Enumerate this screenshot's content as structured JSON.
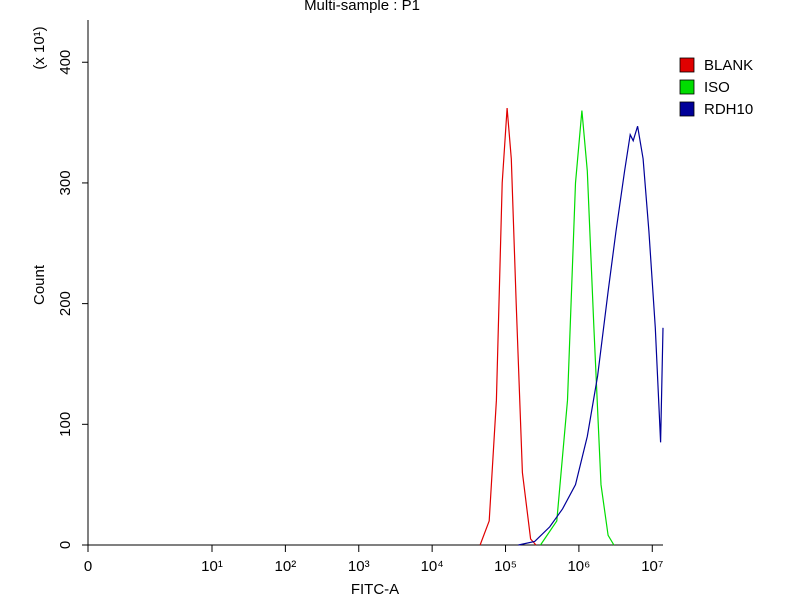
{
  "chart_data": {
    "type": "histogram-overlay",
    "title": "Multi-sample : P1",
    "x_label": "FITC-A",
    "y_label": "Count",
    "y_multiplier": "(x 10¹)",
    "xscale": "symlog",
    "linthresh": 10,
    "xlim": [
      0,
      14000000
    ],
    "xticks": [
      0,
      {
        "value": 10,
        "label": "10¹"
      },
      {
        "value": 100,
        "label": "10²"
      },
      {
        "value": 1000,
        "label": "10³"
      },
      {
        "value": 10000,
        "label": "10⁴"
      },
      {
        "value": 100000,
        "label": "10⁵"
      },
      {
        "value": 1000000,
        "label": "10⁶"
      },
      {
        "value": 10000000,
        "label": "10⁷"
      }
    ],
    "ylim": [
      0,
      435
    ],
    "yticks": [
      0,
      100,
      200,
      300,
      400
    ],
    "series": [
      {
        "name": "BLANK",
        "color": "#e00000",
        "x": [
          45000,
          60000,
          75000,
          90000,
          105000,
          120000,
          140000,
          170000,
          220000,
          260000
        ],
        "values": [
          0,
          20,
          120,
          300,
          362,
          320,
          200,
          60,
          5,
          0
        ]
      },
      {
        "name": "ISO",
        "color": "#00dd00",
        "x": [
          300000,
          500000,
          700000,
          900000,
          1100000,
          1300000,
          1600000,
          2000000,
          2500000,
          3000000
        ],
        "values": [
          0,
          20,
          120,
          300,
          360,
          310,
          180,
          50,
          8,
          0
        ]
      },
      {
        "name": "RDH10",
        "color": "#000099",
        "x": [
          150000,
          250000,
          400000,
          600000,
          900000,
          1300000,
          1800000,
          2500000,
          3200000,
          4200000,
          5000000,
          5500000,
          6300000,
          7500000,
          9000000,
          11000000,
          13000000,
          14000000
        ],
        "values": [
          0,
          3,
          15,
          30,
          50,
          90,
          140,
          210,
          260,
          310,
          340,
          335,
          347,
          320,
          260,
          180,
          85,
          180
        ]
      }
    ]
  }
}
